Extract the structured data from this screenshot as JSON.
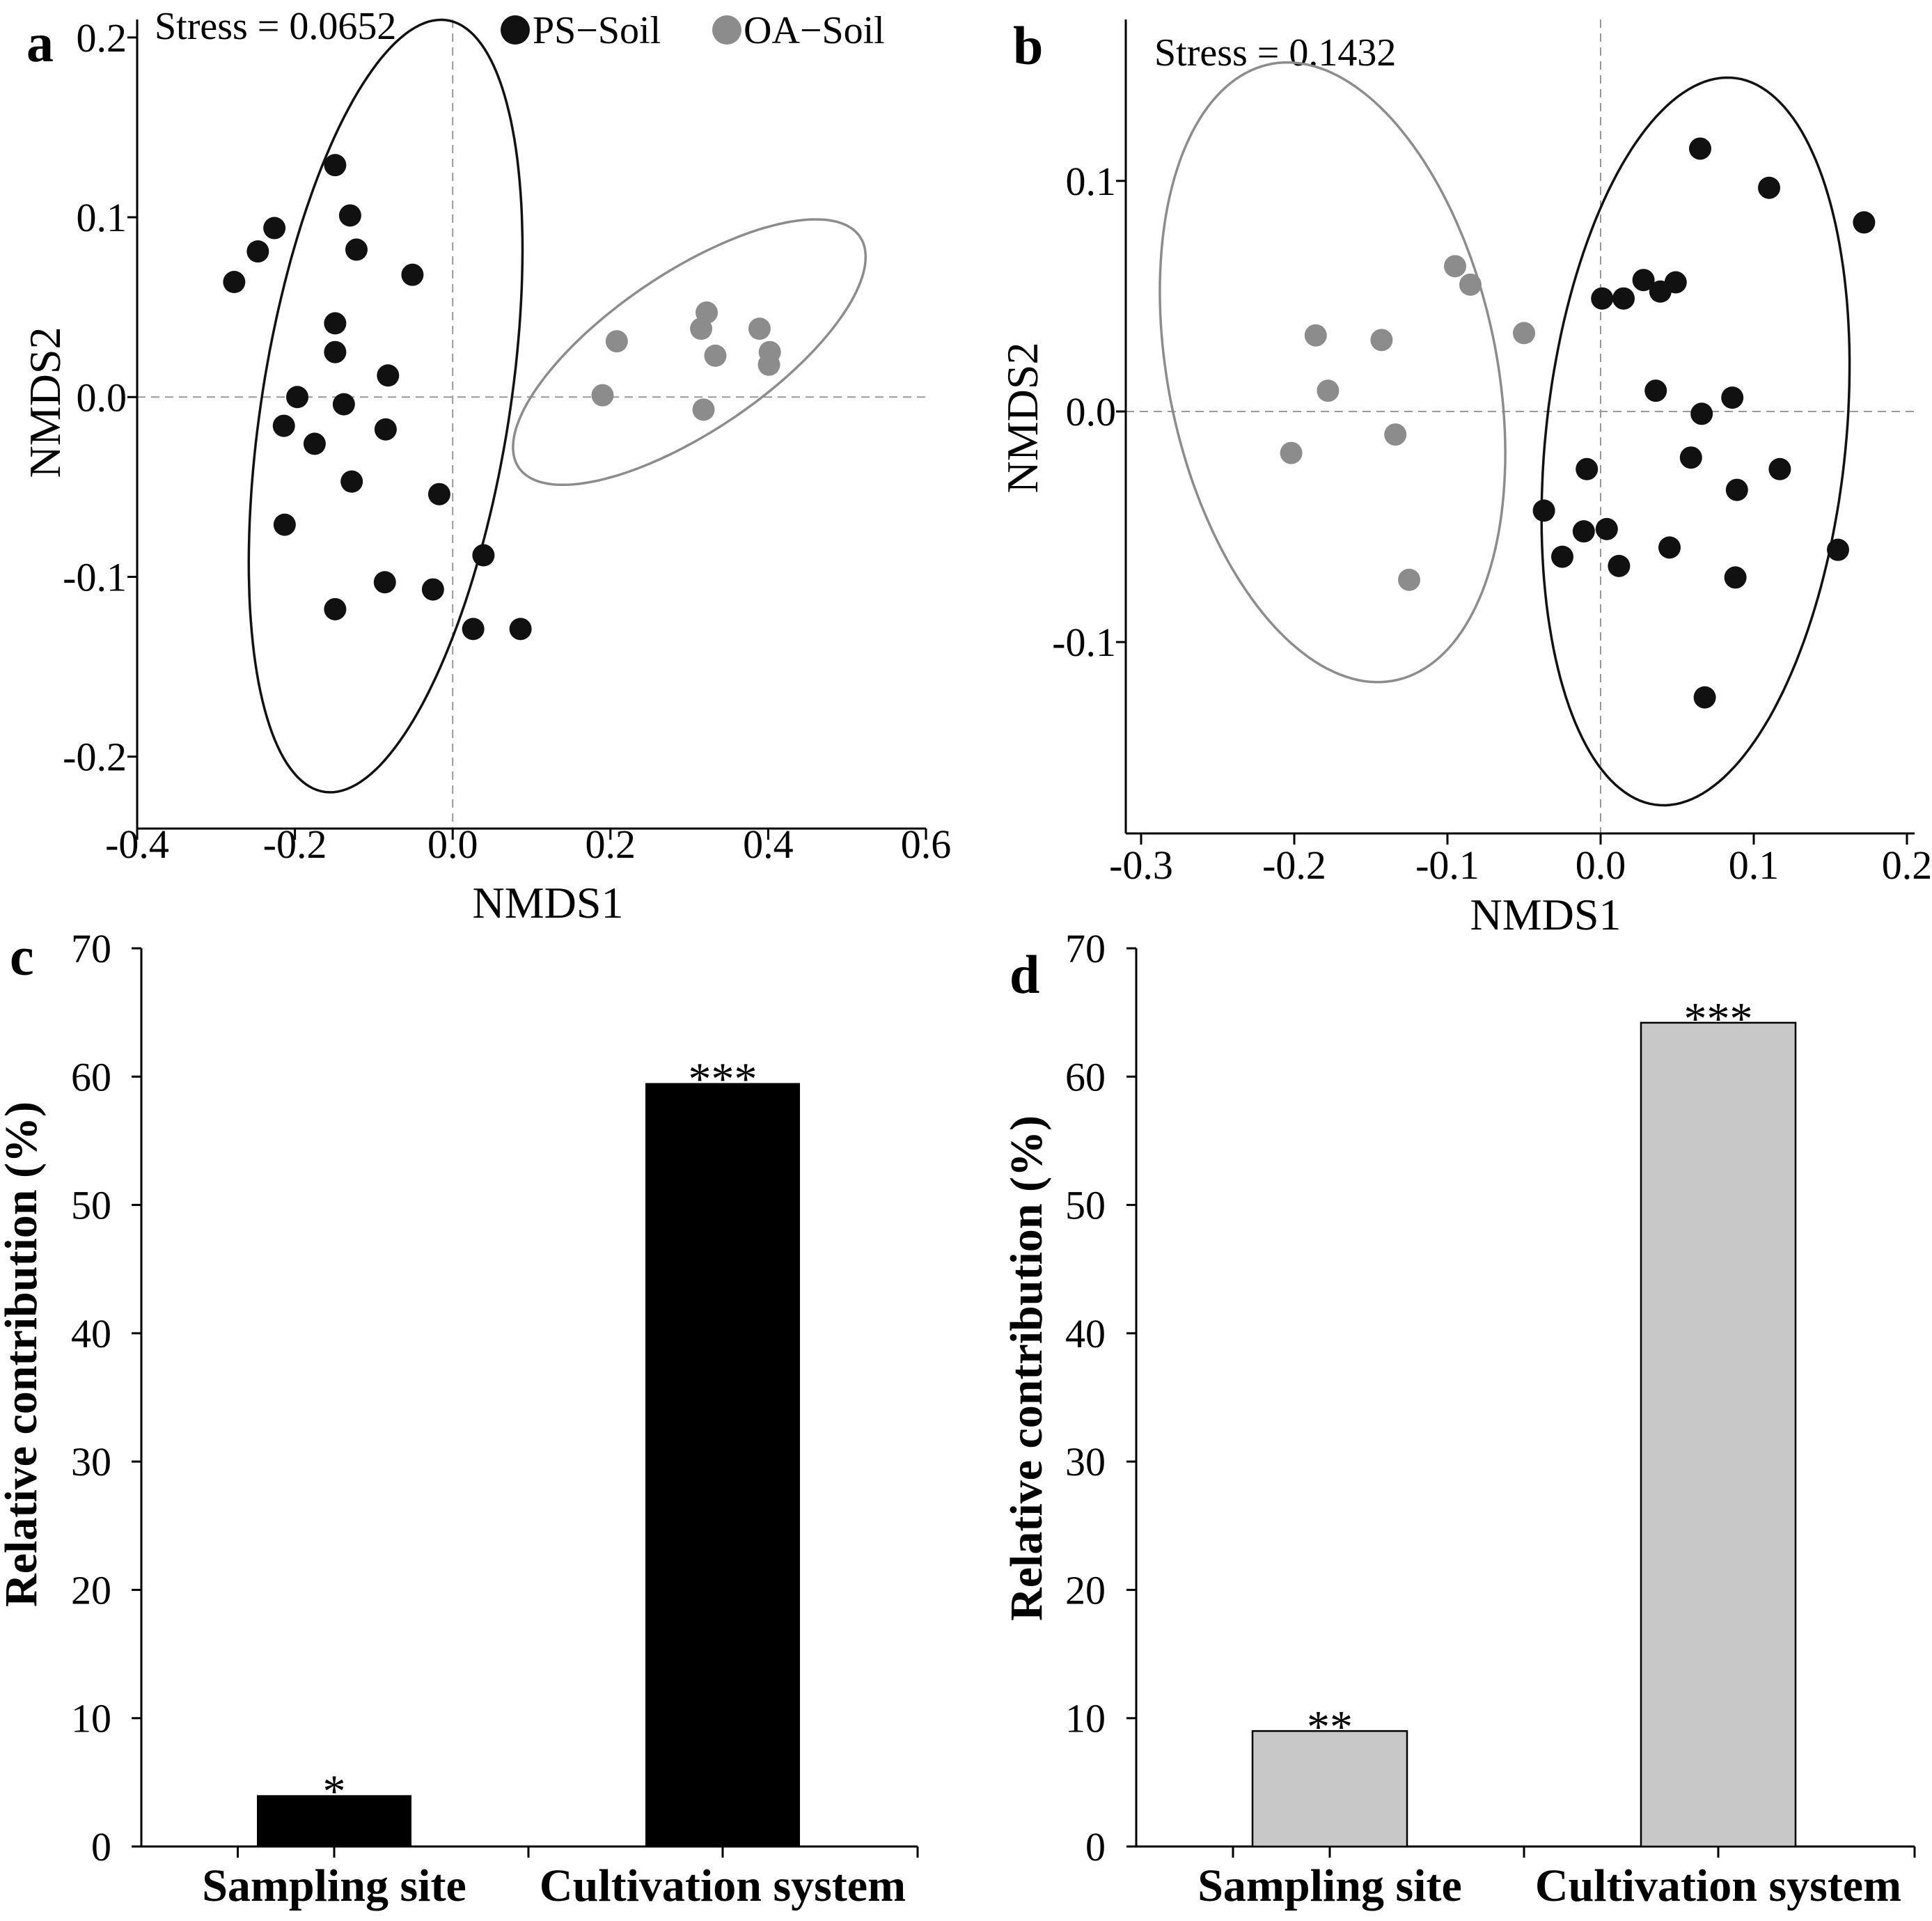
{
  "chart_data": [
    {
      "panel": "a",
      "type": "scatter",
      "stress": "Stress = 0.0652",
      "xlabel": "NMDS1",
      "ylabel": "NMDS2",
      "xlim": [
        -0.4,
        0.6
      ],
      "ylim": [
        -0.24,
        0.21
      ],
      "xticks": [
        -0.4,
        -0.2,
        0.0,
        0.2,
        0.4,
        0.6
      ],
      "xtick_labels": [
        "-0.4",
        "-0.2",
        "0.0",
        "0.2",
        "0.4",
        "0.6"
      ],
      "yticks": [
        -0.2,
        -0.1,
        0.0,
        0.1,
        0.2
      ],
      "ytick_labels": [
        "-0.2",
        "-0.1",
        "0.0",
        "0.1",
        "0.2"
      ],
      "legend": [
        {
          "label": "PS−Soil",
          "color": "#111111"
        },
        {
          "label": "OA−Soil",
          "color": "#8c8c8c"
        }
      ],
      "series": [
        {
          "color": "#111111",
          "points": [
            [
              -0.277,
              0.064
            ],
            [
              -0.247,
              0.081
            ],
            [
              -0.226,
              0.094
            ],
            [
              -0.149,
              0.129
            ],
            [
              -0.13,
              0.101
            ],
            [
              -0.122,
              0.082
            ],
            [
              -0.051,
              0.068
            ],
            [
              -0.149,
              0.041
            ],
            [
              -0.149,
              0.025
            ],
            [
              -0.082,
              0.012
            ],
            [
              -0.197,
              0.0
            ],
            [
              -0.138,
              -0.004
            ],
            [
              -0.214,
              -0.016
            ],
            [
              -0.175,
              -0.026
            ],
            [
              -0.085,
              -0.018
            ],
            [
              -0.128,
              -0.047
            ],
            [
              -0.017,
              -0.054
            ],
            [
              -0.213,
              -0.071
            ],
            [
              -0.086,
              -0.103
            ],
            [
              -0.025,
              -0.107
            ],
            [
              0.039,
              -0.088
            ],
            [
              -0.149,
              -0.118
            ],
            [
              0.026,
              -0.129
            ],
            [
              0.086,
              -0.129
            ]
          ]
        },
        {
          "color": "#8c8c8c",
          "points": [
            [
              0.208,
              0.031
            ],
            [
              0.322,
              0.047
            ],
            [
              0.315,
              0.038
            ],
            [
              0.333,
              0.023
            ],
            [
              0.389,
              0.038
            ],
            [
              0.402,
              0.025
            ],
            [
              0.401,
              0.018
            ],
            [
              0.19,
              0.001
            ],
            [
              0.318,
              -0.007
            ]
          ]
        }
      ],
      "ellipses": [
        {
          "color": "#111111",
          "cx": -0.085,
          "cy": -0.005,
          "rx": 0.145,
          "ry": 0.235,
          "angle_deg": -31
        },
        {
          "color": "#8c8c8c",
          "cx": 0.3,
          "cy": 0.025,
          "rx": 0.23,
          "ry": 0.05,
          "angle_deg": 14
        }
      ]
    },
    {
      "panel": "b",
      "type": "scatter",
      "stress": "Stress = 0.1432",
      "xlabel": "NMDS1",
      "ylabel": "NMDS2",
      "xlim": [
        -0.31,
        0.205
      ],
      "ylim": [
        -0.183,
        0.17
      ],
      "xticks": [
        -0.3,
        -0.2,
        -0.1,
        0.0,
        0.1,
        0.2
      ],
      "xtick_labels": [
        "-0.3",
        "-0.2",
        "-0.1",
        "0.0",
        "0.1",
        "0.2"
      ],
      "yticks": [
        -0.1,
        0.0,
        0.1
      ],
      "ytick_labels": [
        "-0.1",
        "0.0",
        "0.1"
      ],
      "series": [
        {
          "color": "#111111",
          "points": [
            [
              0.065,
              0.114
            ],
            [
              0.11,
              0.097
            ],
            [
              0.172,
              0.082
            ],
            [
              0.028,
              0.057
            ],
            [
              0.039,
              0.052
            ],
            [
              0.049,
              0.056
            ],
            [
              0.001,
              0.049
            ],
            [
              0.015,
              0.049
            ],
            [
              0.036,
              0.009
            ],
            [
              0.086,
              0.006
            ],
            [
              0.066,
              -0.001
            ],
            [
              0.117,
              -0.025
            ],
            [
              0.059,
              -0.02
            ],
            [
              0.089,
              -0.034
            ],
            [
              -0.009,
              -0.025
            ],
            [
              -0.037,
              -0.043
            ],
            [
              -0.011,
              -0.052
            ],
            [
              0.004,
              -0.051
            ],
            [
              0.045,
              -0.059
            ],
            [
              0.155,
              -0.06
            ],
            [
              -0.025,
              -0.063
            ],
            [
              0.012,
              -0.067
            ],
            [
              0.088,
              -0.072
            ],
            [
              0.068,
              -0.124
            ]
          ]
        },
        {
          "color": "#8c8c8c",
          "points": [
            [
              -0.095,
              0.063
            ],
            [
              -0.085,
              0.055
            ],
            [
              -0.186,
              0.033
            ],
            [
              -0.143,
              0.031
            ],
            [
              -0.05,
              0.034
            ],
            [
              -0.178,
              0.009
            ],
            [
              -0.134,
              -0.01
            ],
            [
              -0.202,
              -0.018
            ],
            [
              -0.125,
              -0.073
            ]
          ]
        }
      ],
      "ellipses": [
        {
          "color": "#111111",
          "cx": 0.062,
          "cy": -0.013,
          "rx": 0.097,
          "ry": 0.16,
          "angle_deg": -12
        },
        {
          "color": "#8c8c8c",
          "cx": -0.175,
          "cy": 0.017,
          "rx": 0.103,
          "ry": 0.142,
          "angle_deg": 28
        }
      ]
    },
    {
      "panel": "c",
      "type": "bar",
      "categories": [
        "Sampling site",
        "Cultivation system"
      ],
      "values": [
        4.0,
        59.5
      ],
      "significance": [
        "*",
        "***"
      ],
      "bar_color": "#000000",
      "ylabel": "Relative contribution (%)",
      "ylim": [
        0,
        70
      ],
      "yticks": [
        0,
        10,
        20,
        30,
        40,
        50,
        60,
        70
      ],
      "ytick_labels": [
        "0",
        "10",
        "20",
        "30",
        "40",
        "50",
        "60",
        "70"
      ]
    },
    {
      "panel": "d",
      "type": "bar",
      "categories": [
        "Sampling site",
        "Cultivation system"
      ],
      "values": [
        9.0,
        64.2
      ],
      "significance": [
        "**",
        "***"
      ],
      "bar_color": "#c8c8c8",
      "ylabel": "Relative contribution (%)",
      "ylim": [
        0,
        70
      ],
      "yticks": [
        0,
        10,
        20,
        30,
        40,
        50,
        60,
        70
      ],
      "ytick_labels": [
        "0",
        "10",
        "20",
        "30",
        "40",
        "50",
        "60",
        "70"
      ]
    }
  ]
}
